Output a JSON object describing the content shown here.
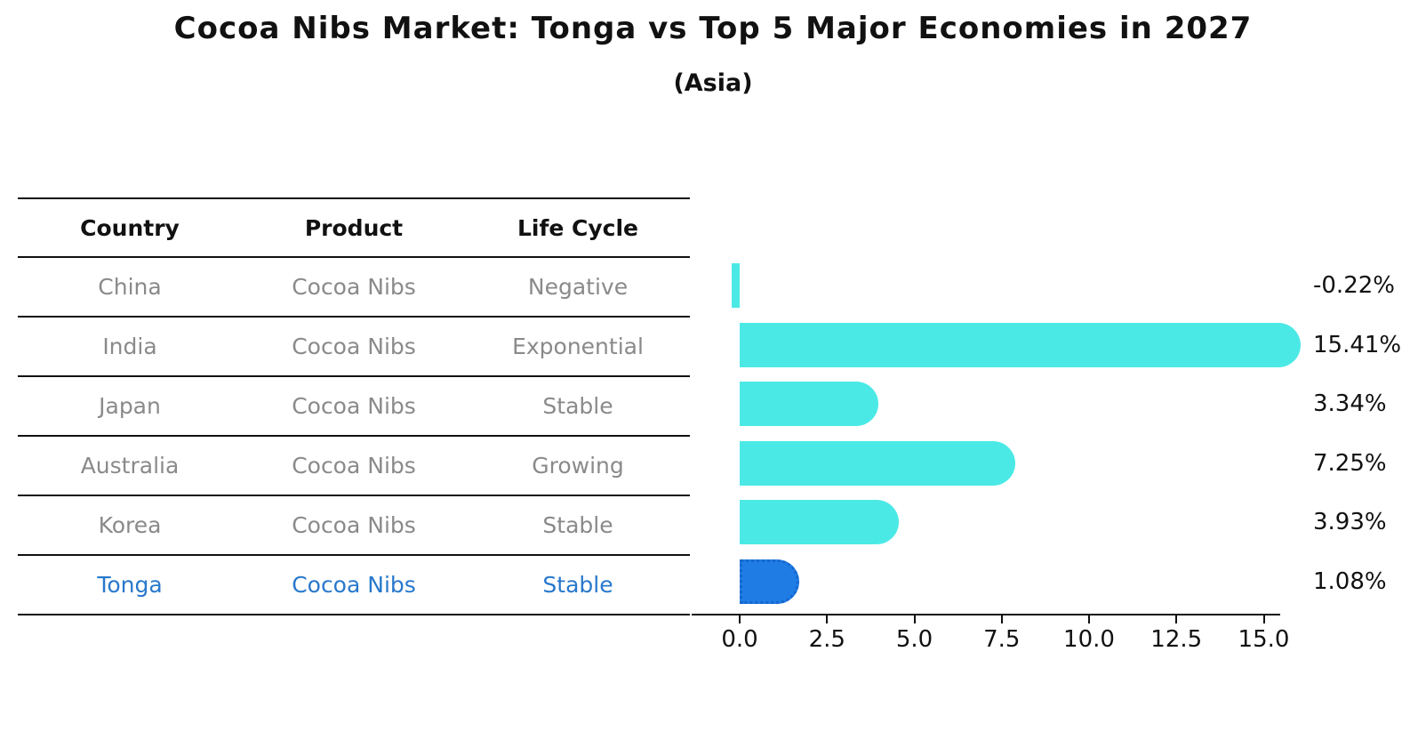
{
  "title": "Cocoa Nibs Market: Tonga vs Top 5 Major Economies in 2027",
  "subtitle": "(Asia)",
  "table": {
    "columns": [
      "Country",
      "Product",
      "Life Cycle"
    ],
    "rows": [
      {
        "country": "China",
        "product": "Cocoa Nibs",
        "life_cycle": "Negative",
        "highlight": false
      },
      {
        "country": "India",
        "product": "Cocoa Nibs",
        "life_cycle": "Exponential",
        "highlight": false
      },
      {
        "country": "Japan",
        "product": "Cocoa Nibs",
        "life_cycle": "Stable",
        "highlight": false
      },
      {
        "country": "Australia",
        "product": "Cocoa Nibs",
        "life_cycle": "Growing",
        "highlight": false
      },
      {
        "country": "Korea",
        "product": "Cocoa Nibs",
        "life_cycle": "Stable",
        "highlight": false
      },
      {
        "country": "Tonga",
        "product": "Cocoa Nibs",
        "life_cycle": "Stable",
        "highlight": true
      }
    ]
  },
  "chart_data": {
    "type": "bar",
    "orientation": "horizontal",
    "title": "Cocoa Nibs Market: Tonga vs Top 5 Major Economies in 2027",
    "subtitle": "(Asia)",
    "categories": [
      "China",
      "India",
      "Japan",
      "Australia",
      "Korea",
      "Tonga"
    ],
    "values": [
      -0.22,
      15.41,
      3.34,
      7.25,
      3.93,
      1.08
    ],
    "value_labels": [
      "-0.22%",
      "15.41%",
      "3.34%",
      "7.25%",
      "3.93%",
      "1.08%"
    ],
    "x_ticks": [
      0,
      2.5,
      5,
      7.5,
      10,
      12.5,
      15
    ],
    "x_tick_labels": [
      "0.0",
      "2.5",
      "5.0",
      "7.5",
      "10.0",
      "12.5",
      "15.0"
    ],
    "xlim": [
      -1.4,
      15.8
    ],
    "grid": false,
    "legend": null,
    "bar_color": "#4be9e6",
    "highlight_color": "#1f7ce4",
    "highlight_index": 5,
    "highlight_text_color": "#2878cc"
  }
}
